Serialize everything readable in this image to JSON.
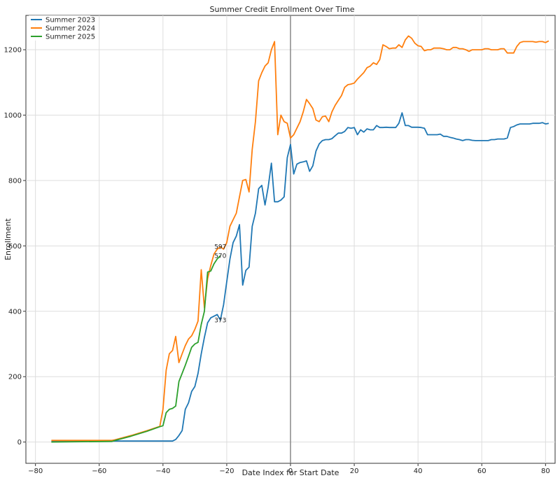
{
  "chart_data": {
    "type": "line",
    "title": "Summer Credit Enrollment Over Time",
    "xlabel": "Date Index for Start Date",
    "ylabel": "Enrollment",
    "xlim": [
      -83,
      83
    ],
    "ylim": [
      -65,
      1305
    ],
    "xticks": [
      -80,
      -60,
      -40,
      -20,
      0,
      20,
      40,
      60,
      80
    ],
    "yticks": [
      0,
      200,
      400,
      600,
      800,
      1000,
      1200
    ],
    "grid": true,
    "legend_position": "top-left",
    "vline_x": 0,
    "series": [
      {
        "name": "Summer 2023",
        "color": "#1f77b4",
        "points": [
          [
            -75,
            2
          ],
          [
            -60,
            3
          ],
          [
            -55,
            3
          ],
          [
            -50,
            3
          ],
          [
            -45,
            3
          ],
          [
            -40,
            3
          ],
          [
            -37,
            3
          ],
          [
            -36,
            8
          ],
          [
            -35,
            20
          ],
          [
            -34,
            35
          ],
          [
            -33,
            100
          ],
          [
            -32,
            120
          ],
          [
            -31,
            155
          ],
          [
            -30,
            170
          ],
          [
            -29,
            210
          ],
          [
            -28,
            270
          ],
          [
            -27,
            320
          ],
          [
            -26,
            365
          ],
          [
            -25,
            380
          ],
          [
            -24,
            385
          ],
          [
            -23,
            390
          ],
          [
            -22,
            373
          ],
          [
            -21,
            420
          ],
          [
            -20,
            490
          ],
          [
            -19,
            560
          ],
          [
            -18,
            610
          ],
          [
            -17,
            630
          ],
          [
            -16,
            665
          ],
          [
            -15,
            480
          ],
          [
            -14,
            525
          ],
          [
            -13,
            535
          ],
          [
            -12,
            660
          ],
          [
            -11,
            700
          ],
          [
            -10,
            775
          ],
          [
            -9,
            785
          ],
          [
            -8,
            725
          ],
          [
            -7,
            780
          ],
          [
            -6,
            853
          ],
          [
            -5,
            735
          ],
          [
            -4,
            735
          ],
          [
            -3,
            740
          ],
          [
            -2,
            750
          ],
          [
            -1,
            870
          ],
          [
            0,
            910
          ],
          [
            1,
            820
          ],
          [
            2,
            850
          ],
          [
            3,
            855
          ],
          [
            4,
            857
          ],
          [
            5,
            860
          ],
          [
            6,
            828
          ],
          [
            7,
            845
          ],
          [
            8,
            890
          ],
          [
            9,
            912
          ],
          [
            10,
            922
          ],
          [
            11,
            925
          ],
          [
            12,
            925
          ],
          [
            13,
            928
          ],
          [
            14,
            937
          ],
          [
            15,
            945
          ],
          [
            16,
            945
          ],
          [
            17,
            950
          ],
          [
            18,
            962
          ],
          [
            19,
            960
          ],
          [
            20,
            962
          ],
          [
            21,
            940
          ],
          [
            22,
            955
          ],
          [
            23,
            948
          ],
          [
            24,
            958
          ],
          [
            25,
            955
          ],
          [
            26,
            955
          ],
          [
            27,
            968
          ],
          [
            28,
            962
          ],
          [
            29,
            962
          ],
          [
            30,
            963
          ],
          [
            31,
            962
          ],
          [
            32,
            962
          ],
          [
            33,
            962
          ],
          [
            34,
            975
          ],
          [
            35,
            1007
          ],
          [
            36,
            968
          ],
          [
            37,
            968
          ],
          [
            38,
            963
          ],
          [
            39,
            963
          ],
          [
            40,
            963
          ],
          [
            41,
            962
          ],
          [
            42,
            960
          ],
          [
            43,
            940
          ],
          [
            44,
            940
          ],
          [
            45,
            940
          ],
          [
            46,
            940
          ],
          [
            47,
            942
          ],
          [
            48,
            935
          ],
          [
            49,
            935
          ],
          [
            50,
            932
          ],
          [
            51,
            930
          ],
          [
            52,
            927
          ],
          [
            53,
            925
          ],
          [
            54,
            922
          ],
          [
            55,
            925
          ],
          [
            56,
            925
          ],
          [
            57,
            923
          ],
          [
            58,
            922
          ],
          [
            59,
            922
          ],
          [
            60,
            922
          ],
          [
            61,
            922
          ],
          [
            62,
            922
          ],
          [
            63,
            925
          ],
          [
            64,
            925
          ],
          [
            65,
            927
          ],
          [
            66,
            927
          ],
          [
            67,
            927
          ],
          [
            68,
            930
          ],
          [
            69,
            962
          ],
          [
            70,
            965
          ],
          [
            71,
            970
          ],
          [
            72,
            973
          ],
          [
            73,
            973
          ],
          [
            74,
            973
          ],
          [
            75,
            973
          ],
          [
            76,
            975
          ],
          [
            77,
            975
          ],
          [
            78,
            975
          ],
          [
            79,
            977
          ],
          [
            80,
            973
          ],
          [
            81,
            975
          ]
        ]
      },
      {
        "name": "Summer 2024",
        "color": "#ff7f0e",
        "points": [
          [
            -75,
            5
          ],
          [
            -56,
            5
          ],
          [
            -55,
            7
          ],
          [
            -50,
            20
          ],
          [
            -45,
            35
          ],
          [
            -41,
            48
          ],
          [
            -40,
            100
          ],
          [
            -39,
            220
          ],
          [
            -38,
            270
          ],
          [
            -37,
            280
          ],
          [
            -36,
            323
          ],
          [
            -35,
            243
          ],
          [
            -34,
            270
          ],
          [
            -33,
            295
          ],
          [
            -32,
            315
          ],
          [
            -31,
            325
          ],
          [
            -30,
            345
          ],
          [
            -29,
            370
          ],
          [
            -28,
            527
          ],
          [
            -27,
            410
          ],
          [
            -26,
            500
          ],
          [
            -25,
            540
          ],
          [
            -24,
            575
          ],
          [
            -23,
            590
          ],
          [
            -22,
            597
          ],
          [
            -21,
            590
          ],
          [
            -20,
            610
          ],
          [
            -19,
            660
          ],
          [
            -18,
            680
          ],
          [
            -17,
            700
          ],
          [
            -16,
            750
          ],
          [
            -15,
            800
          ],
          [
            -14,
            803
          ],
          [
            -13,
            765
          ],
          [
            -12,
            895
          ],
          [
            -11,
            980
          ],
          [
            -10,
            1105
          ],
          [
            -9,
            1130
          ],
          [
            -8,
            1150
          ],
          [
            -7,
            1160
          ],
          [
            -6,
            1200
          ],
          [
            -5,
            1225
          ],
          [
            -4,
            940
          ],
          [
            -3,
            1000
          ],
          [
            -2,
            980
          ],
          [
            -1,
            975
          ],
          [
            0,
            930
          ],
          [
            1,
            940
          ],
          [
            2,
            960
          ],
          [
            3,
            980
          ],
          [
            4,
            1010
          ],
          [
            5,
            1048
          ],
          [
            6,
            1035
          ],
          [
            7,
            1020
          ],
          [
            8,
            985
          ],
          [
            9,
            980
          ],
          [
            10,
            995
          ],
          [
            11,
            997
          ],
          [
            12,
            980
          ],
          [
            13,
            1010
          ],
          [
            14,
            1030
          ],
          [
            15,
            1045
          ],
          [
            16,
            1060
          ],
          [
            17,
            1085
          ],
          [
            18,
            1093
          ],
          [
            19,
            1095
          ],
          [
            20,
            1098
          ],
          [
            21,
            1110
          ],
          [
            22,
            1120
          ],
          [
            23,
            1130
          ],
          [
            24,
            1145
          ],
          [
            25,
            1150
          ],
          [
            26,
            1160
          ],
          [
            27,
            1155
          ],
          [
            28,
            1170
          ],
          [
            29,
            1215
          ],
          [
            30,
            1210
          ],
          [
            31,
            1203
          ],
          [
            32,
            1205
          ],
          [
            33,
            1205
          ],
          [
            34,
            1215
          ],
          [
            35,
            1207
          ],
          [
            36,
            1230
          ],
          [
            37,
            1242
          ],
          [
            38,
            1235
          ],
          [
            39,
            1220
          ],
          [
            40,
            1212
          ],
          [
            41,
            1210
          ],
          [
            42,
            1197
          ],
          [
            43,
            1200
          ],
          [
            44,
            1200
          ],
          [
            45,
            1205
          ],
          [
            46,
            1205
          ],
          [
            47,
            1205
          ],
          [
            48,
            1203
          ],
          [
            49,
            1200
          ],
          [
            50,
            1200
          ],
          [
            51,
            1207
          ],
          [
            52,
            1207
          ],
          [
            53,
            1203
          ],
          [
            54,
            1203
          ],
          [
            55,
            1200
          ],
          [
            56,
            1195
          ],
          [
            57,
            1200
          ],
          [
            58,
            1200
          ],
          [
            59,
            1200
          ],
          [
            60,
            1200
          ],
          [
            61,
            1203
          ],
          [
            62,
            1203
          ],
          [
            63,
            1200
          ],
          [
            64,
            1200
          ],
          [
            65,
            1200
          ],
          [
            66,
            1203
          ],
          [
            67,
            1203
          ],
          [
            68,
            1190
          ],
          [
            69,
            1190
          ],
          [
            70,
            1190
          ],
          [
            71,
            1210
          ],
          [
            72,
            1222
          ],
          [
            73,
            1225
          ],
          [
            74,
            1225
          ],
          [
            75,
            1225
          ],
          [
            76,
            1225
          ],
          [
            77,
            1223
          ],
          [
            78,
            1225
          ],
          [
            79,
            1225
          ],
          [
            80,
            1222
          ],
          [
            81,
            1227
          ]
        ]
      },
      {
        "name": "Summer 2025",
        "color": "#2ca02c",
        "points": [
          [
            -75,
            0
          ],
          [
            -56,
            2
          ],
          [
            -55,
            5
          ],
          [
            -50,
            18
          ],
          [
            -45,
            33
          ],
          [
            -41,
            47
          ],
          [
            -40,
            50
          ],
          [
            -39,
            90
          ],
          [
            -38,
            100
          ],
          [
            -37,
            103
          ],
          [
            -36,
            110
          ],
          [
            -35,
            185
          ],
          [
            -34,
            210
          ],
          [
            -33,
            235
          ],
          [
            -32,
            262
          ],
          [
            -31,
            290
          ],
          [
            -30,
            300
          ],
          [
            -29,
            305
          ],
          [
            -28,
            360
          ],
          [
            -27,
            400
          ],
          [
            -26,
            520
          ],
          [
            -25,
            523
          ],
          [
            -24,
            545
          ],
          [
            -23,
            560
          ],
          [
            -22,
            570
          ]
        ]
      }
    ],
    "annotations": [
      {
        "text": "597",
        "x": -22,
        "y": 597
      },
      {
        "text": "570",
        "x": -22,
        "y": 570
      },
      {
        "text": "373",
        "x": -22,
        "y": 373
      }
    ]
  }
}
